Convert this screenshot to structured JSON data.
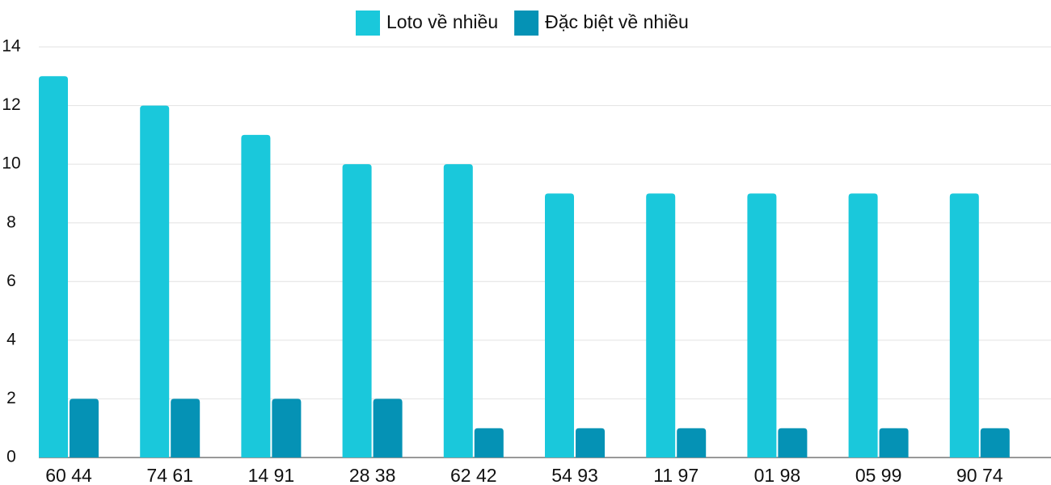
{
  "chart_data": {
    "type": "bar",
    "categories": [
      "60 44",
      "74 61",
      "14 91",
      "28 38",
      "62 42",
      "54 93",
      "11 97",
      "01 98",
      "05 99",
      "90 74"
    ],
    "series": [
      {
        "name": "Loto về nhiều",
        "color": "#1ac8db",
        "values": [
          13,
          12,
          11,
          10,
          10,
          9,
          9,
          9,
          9,
          9
        ]
      },
      {
        "name": "Đặc biệt về nhiều",
        "color": "#0592b5",
        "values": [
          2,
          2,
          2,
          2,
          1,
          1,
          1,
          1,
          1,
          1
        ]
      }
    ],
    "ylim": [
      0,
      14
    ],
    "yticks": [
      0,
      2,
      4,
      6,
      8,
      10,
      12,
      14
    ],
    "grid": true,
    "legend": "top"
  }
}
